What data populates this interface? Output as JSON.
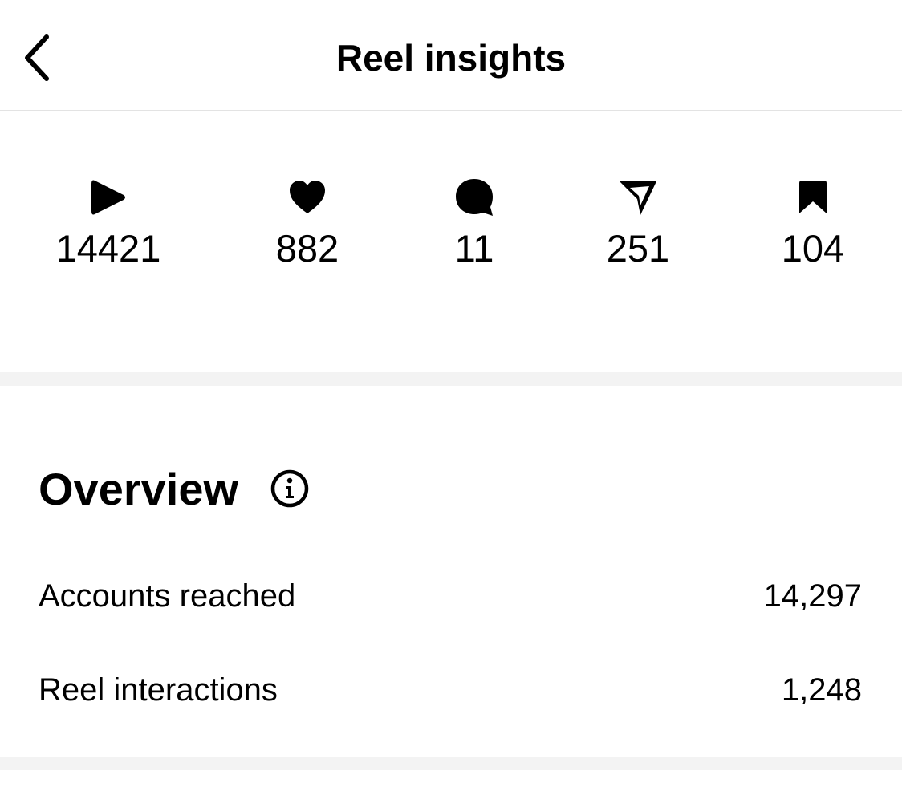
{
  "header": {
    "title": "Reel insights",
    "back_icon": "chevron-left-icon"
  },
  "stats": [
    {
      "icon": "play-icon",
      "value": "14421"
    },
    {
      "icon": "heart-icon",
      "value": "882"
    },
    {
      "icon": "comment-icon",
      "value": "11"
    },
    {
      "icon": "share-icon",
      "value": "251"
    },
    {
      "icon": "bookmark-icon",
      "value": "104"
    }
  ],
  "overview": {
    "title": "Overview",
    "info_icon": "info-icon",
    "rows": [
      {
        "label": "Accounts reached",
        "value": "14,297"
      },
      {
        "label": "Reel interactions",
        "value": "1,248"
      }
    ]
  },
  "colors": {
    "text": "#000000",
    "background": "#ffffff",
    "divider": "#f3f3f3",
    "border": "#e3e3e3"
  }
}
